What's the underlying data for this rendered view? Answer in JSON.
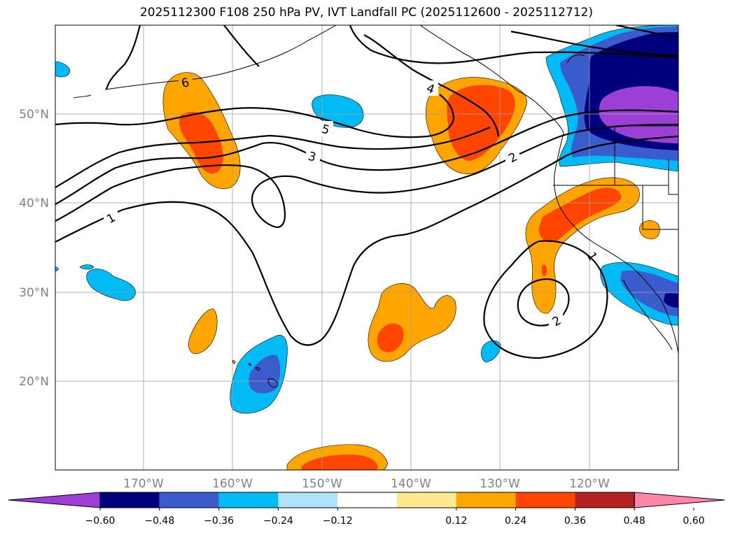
{
  "title": "2025112300 F108 250 hPa PV, IVT Landfall PC (2025112600 - 2025112712)",
  "map": {
    "lon_labels": [
      "170°W",
      "160°W",
      "150°W",
      "140°W",
      "130°W",
      "120°W"
    ],
    "lat_labels": [
      "50°N",
      "40°N",
      "30°N",
      "20°N"
    ],
    "contour_labels": [
      "6",
      "5",
      "4",
      "3",
      "2",
      "1",
      "1",
      "2"
    ]
  },
  "colorbar": {
    "ticks": [
      "−0.60",
      "−0.48",
      "−0.36",
      "−0.24",
      "−0.12",
      "0.12",
      "0.24",
      "0.36",
      "0.48",
      "0.60"
    ],
    "colors": [
      "#9b3fd6",
      "#00007f",
      "#3a5ccc",
      "#00bbf5",
      "#b0e2fb",
      "#ffffff",
      "#ffe98f",
      "#ffa500",
      "#ff4500",
      "#b22222",
      "#ff85a8"
    ]
  }
}
